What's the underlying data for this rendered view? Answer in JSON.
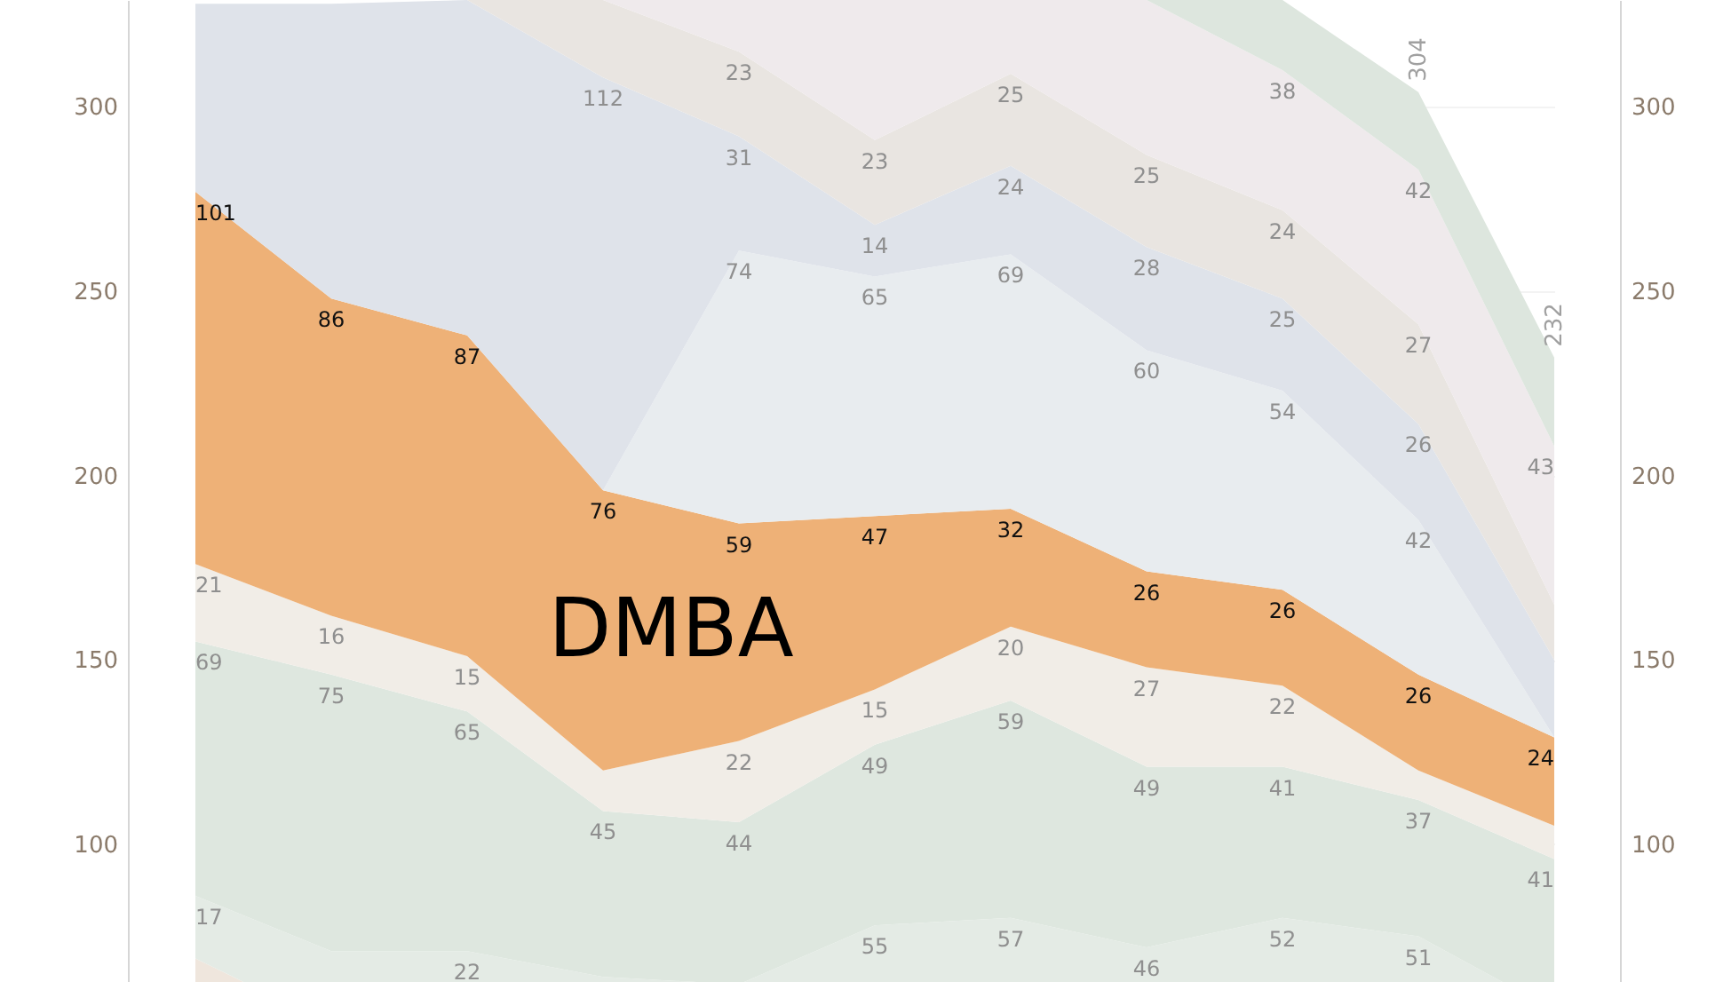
{
  "chart_data": {
    "type": "area",
    "stacked": true,
    "categories": [
      null,
      null,
      null,
      null,
      null,
      null,
      null,
      null,
      null,
      null,
      null
    ],
    "ylim": [
      0,
      329
    ],
    "yticks": [
      100,
      150,
      200,
      250,
      300
    ],
    "y2lim": [
      0,
      329
    ],
    "y2ticks": [
      100,
      150,
      200,
      250,
      300
    ],
    "grid": "y",
    "totals": [
      null,
      null,
      null,
      null,
      null,
      null,
      null,
      null,
      null,
      "304",
      "232"
    ],
    "series": [
      {
        "color": "#efe6dd",
        "values": [
          69,
          51,
          49,
          39,
          17,
          23,
          23,
          26,
          28,
          24,
          15
        ]
      },
      {
        "color": "#e4ebe5",
        "values": [
          17,
          20,
          22,
          25,
          45,
          55,
          57,
          46,
          52,
          51,
          40
        ],
        "value_labels": [
          "17",
          null,
          "22",
          null,
          null,
          "55",
          "57",
          "46",
          "52",
          "51",
          null
        ]
      },
      {
        "color": "#dee7df",
        "values": [
          69,
          75,
          65,
          45,
          44,
          49,
          59,
          49,
          41,
          37,
          41
        ],
        "value_labels": [
          "69",
          "75",
          "65",
          "45",
          "44",
          "49",
          "59",
          "49",
          "41",
          "37",
          "41"
        ]
      },
      {
        "color": "#f1ede7",
        "values": [
          21,
          16,
          15,
          11,
          22,
          15,
          20,
          27,
          22,
          8,
          9
        ],
        "value_labels": [
          "21",
          "16",
          "15",
          null,
          "22",
          "15",
          "20",
          "27",
          "22",
          null,
          null
        ]
      },
      {
        "name": "DMBA",
        "color": "#eeb177",
        "values": [
          101,
          86,
          87,
          76,
          59,
          47,
          32,
          26,
          26,
          26,
          24
        ],
        "value_labels": [
          "101",
          "86",
          "87",
          "76",
          "59",
          "47",
          "32",
          "26",
          "26",
          "26",
          "24"
        ]
      },
      {
        "color": "#e8ecef",
        "values": [
          0,
          0,
          0,
          0,
          74,
          65,
          69,
          60,
          54,
          42,
          0
        ],
        "value_labels": [
          null,
          null,
          null,
          null,
          "74",
          "65",
          "69",
          "60",
          "54",
          "42",
          null
        ]
      },
      {
        "color": "#dfe3ea",
        "values": [
          51,
          80,
          91,
          112,
          31,
          14,
          24,
          28,
          25,
          26,
          21
        ],
        "value_labels": [
          null,
          null,
          null,
          "112",
          "31",
          "14",
          "24",
          "28",
          "25",
          "26",
          null
        ]
      },
      {
        "color": "#e9e5e1",
        "values": [
          0,
          0,
          0,
          21,
          23,
          23,
          25,
          25,
          24,
          27,
          15
        ],
        "value_labels": [
          null,
          null,
          null,
          null,
          "23",
          "23",
          "25",
          "25",
          "24",
          "27",
          null
        ]
      },
      {
        "color": "#efeaec",
        "values": [
          0,
          0,
          0,
          0,
          14,
          38,
          20,
          42,
          38,
          42,
          43
        ],
        "value_labels": [
          null,
          null,
          null,
          null,
          null,
          null,
          null,
          null,
          "38",
          "42",
          "43"
        ]
      },
      {
        "color": "#dde6de",
        "values": [
          0,
          0,
          0,
          0,
          0,
          0,
          0,
          0,
          19,
          21,
          24
        ]
      }
    ]
  }
}
